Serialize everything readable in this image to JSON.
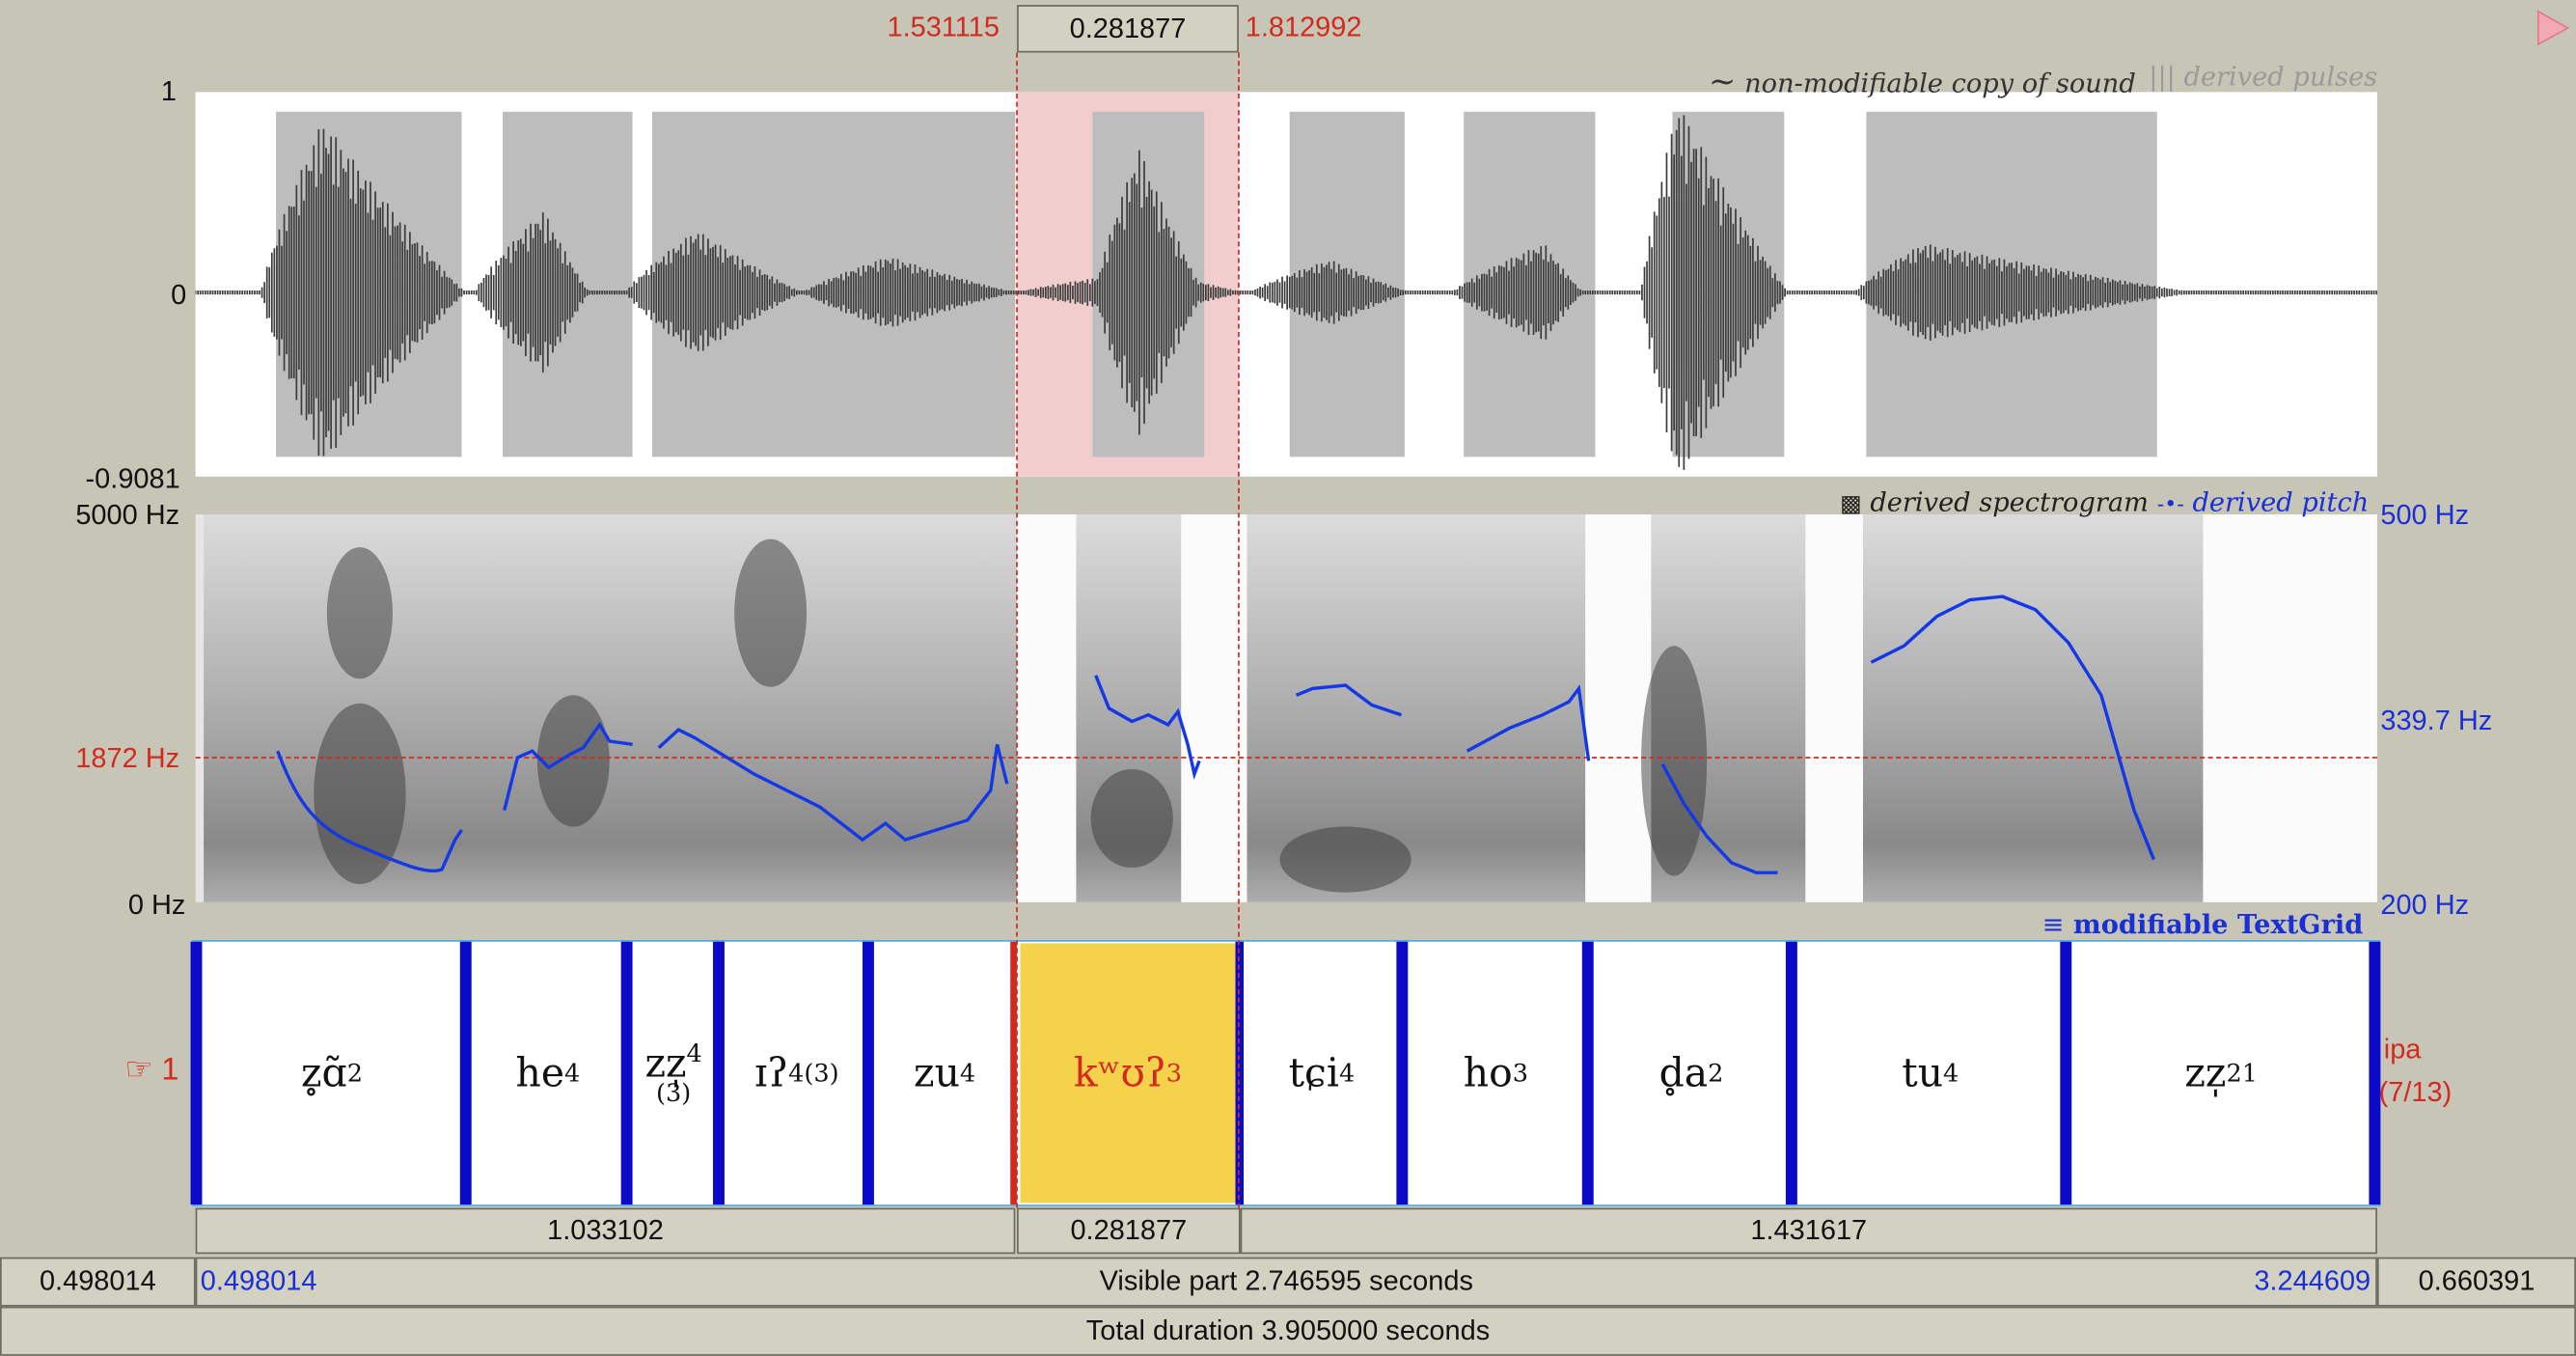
{
  "selection": {
    "start": "1.531115",
    "duration": "0.281877",
    "end": "1.812992"
  },
  "waveform": {
    "y_max": "1",
    "y_zero": "0",
    "y_min": "-0.9081",
    "legend_sound_icon": "~",
    "legend_sound": "non-modifiable copy of sound",
    "legend_pulses_icon": "|||",
    "legend_pulses": "derived pulses"
  },
  "spectrogram": {
    "top_left": "5000 Hz",
    "cursor_left": "1872 Hz",
    "bottom_left": "0 Hz",
    "top_right": "500 Hz",
    "cursor_right": "339.7 Hz",
    "bottom_right": "200 Hz",
    "legend_spectrogram_icon": "▩",
    "legend_spectrogram": "derived spectrogram",
    "legend_pitch_icon": "-•-",
    "legend_pitch": "derived pitch"
  },
  "textgrid": {
    "legend_icon": "≡",
    "legend": "modifiable TextGrid",
    "tier_pointer_icon": "☞",
    "tier_number": "1",
    "tier_name": "ipa",
    "tier_count": "(7/13)",
    "intervals": [
      {
        "text": "z̥ɑ̃",
        "tone": "2"
      },
      {
        "text": "he",
        "tone": "4"
      },
      {
        "text": "zz̩",
        "tone": "4",
        "sub": "(3)"
      },
      {
        "text": "ɪʔ",
        "tone": "4(3)"
      },
      {
        "text": "zu",
        "tone": "4"
      },
      {
        "text": "kʷʊʔ",
        "tone": "3"
      },
      {
        "text": "tɕi",
        "tone": "4"
      },
      {
        "text": "ho",
        "tone": "3"
      },
      {
        "text": "d̥a",
        "tone": "2"
      },
      {
        "text": "tu",
        "tone": "4"
      },
      {
        "text": "zz̩",
        "tone": "21"
      }
    ]
  },
  "bottom": {
    "before_selection": "1.033102",
    "selection": "0.281877",
    "after_selection": "1.431617",
    "hidden_left": "0.498014",
    "visible_start": "0.498014",
    "visible_part": "Visible part 2.746595 seconds",
    "visible_end": "3.244609",
    "hidden_right": "0.660391",
    "total": "Total duration 3.905000 seconds"
  },
  "colors": {
    "selection": "#f1cdcd",
    "cursor": "#d22a1e",
    "pitch": "#1438e6",
    "interval_selected": "#f5d24b",
    "boundary": "#0a0ac8"
  }
}
